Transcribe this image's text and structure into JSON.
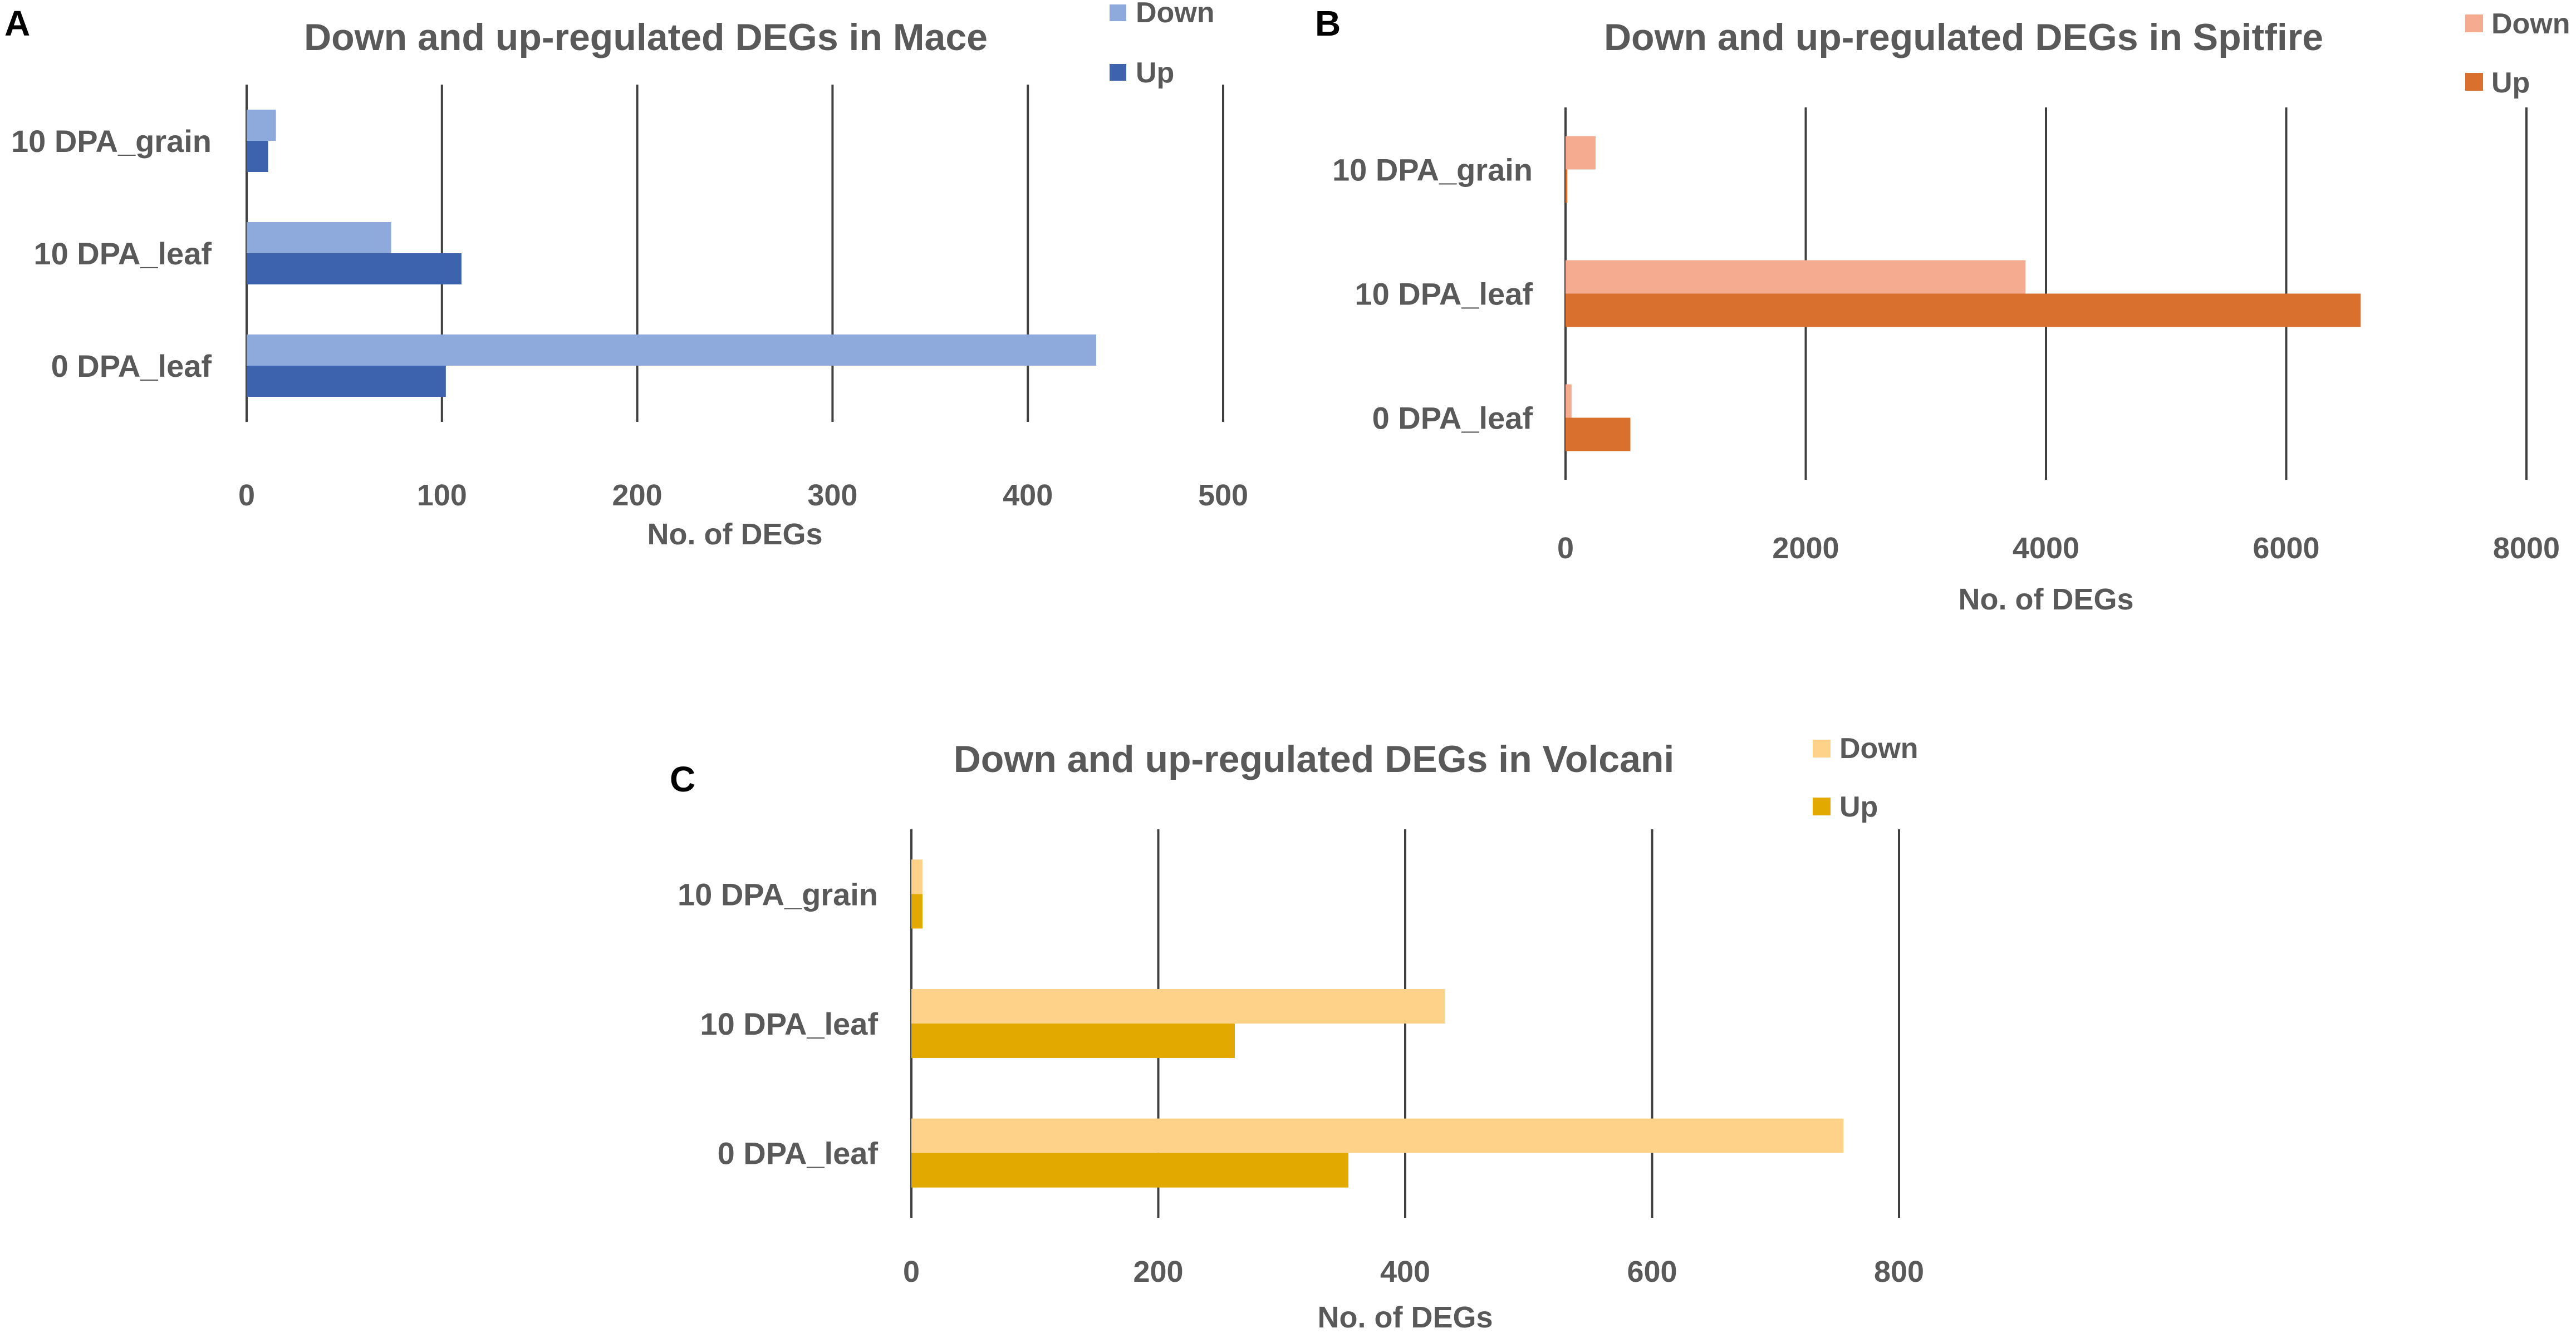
{
  "chart_data": [
    {
      "panel": "A",
      "type": "bar",
      "orientation": "horizontal",
      "title": "Down and up-regulated DEGs in Mace",
      "xlabel": "No. of DEGs",
      "ylabel": "",
      "categories": [
        "10 DPA_grain",
        "10 DPA_leaf",
        "0 DPA_leaf"
      ],
      "series": [
        {
          "name": "Down",
          "color": "#8EA9DB",
          "values": [
            15,
            74,
            435
          ]
        },
        {
          "name": "Up",
          "color": "#3D62AE",
          "values": [
            11,
            110,
            102
          ]
        }
      ],
      "xlim": [
        0,
        500
      ],
      "ticks": [
        0,
        100,
        200,
        300,
        400,
        500
      ],
      "grid": true,
      "legend": "top-right"
    },
    {
      "panel": "B",
      "type": "bar",
      "orientation": "horizontal",
      "title": "Down and up-regulated DEGs in Spitfire",
      "xlabel": "No. of DEGs",
      "ylabel": "",
      "categories": [
        "10 DPA_grain",
        "10 DPA_leaf",
        "0 DPA_leaf"
      ],
      "series": [
        {
          "name": "Down",
          "color": "#F4AB8F",
          "values": [
            250,
            3830,
            50
          ]
        },
        {
          "name": "Up",
          "color": "#D9702E",
          "values": [
            15,
            6620,
            540
          ]
        }
      ],
      "xlim": [
        0,
        8000
      ],
      "ticks": [
        0,
        2000,
        4000,
        6000,
        8000
      ],
      "grid": true,
      "legend": "top-right"
    },
    {
      "panel": "C",
      "type": "bar",
      "orientation": "horizontal",
      "title": "Down and up-regulated DEGs in Volcani",
      "xlabel": "No. of DEGs",
      "ylabel": "",
      "categories": [
        "10 DPA_grain",
        "10 DPA_leaf",
        "0 DPA_leaf"
      ],
      "series": [
        {
          "name": "Down",
          "color": "#FFD28A",
          "values": [
            9,
            432,
            755
          ]
        },
        {
          "name": "Up",
          "color": "#E2A900",
          "values": [
            9,
            262,
            354
          ]
        }
      ],
      "xlim": [
        0,
        800
      ],
      "ticks": [
        0,
        200,
        400,
        600,
        800
      ],
      "grid": true,
      "legend": "top-right"
    }
  ]
}
